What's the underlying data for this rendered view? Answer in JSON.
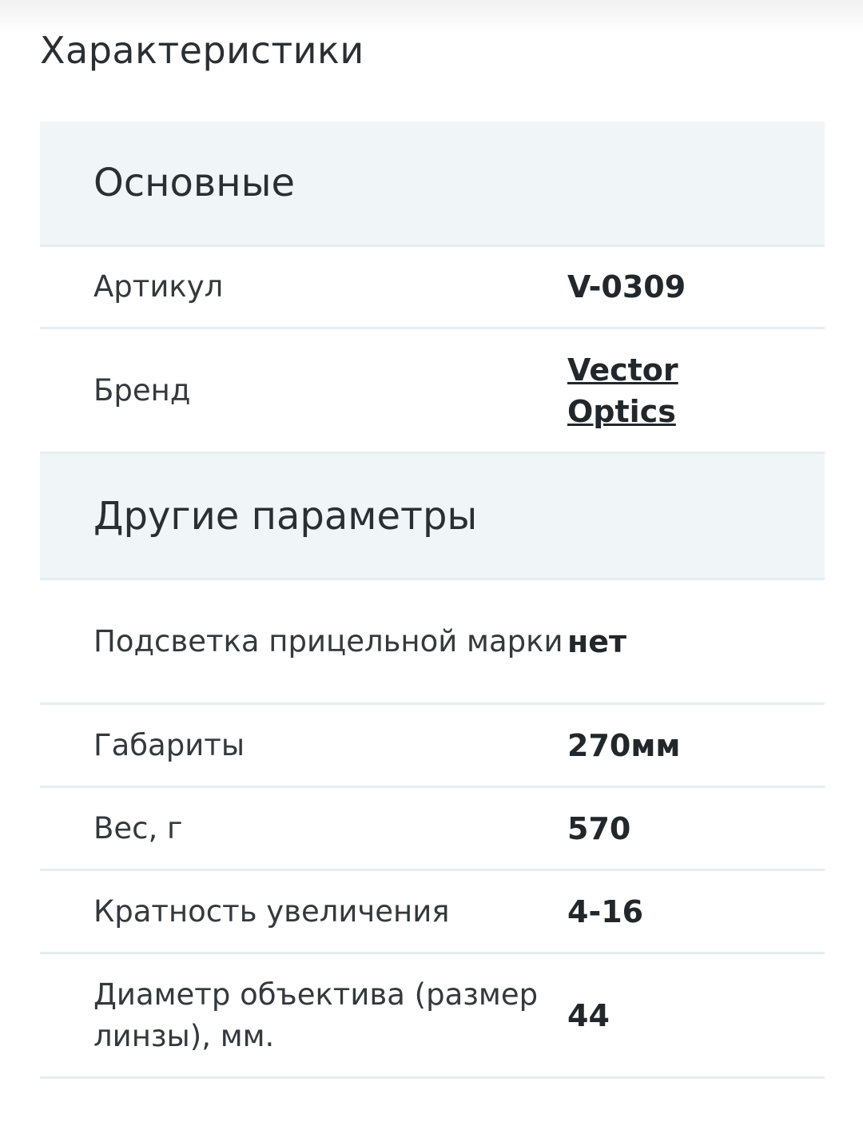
{
  "title": "Характеристики",
  "sections": [
    {
      "title": "Основные",
      "rows": [
        {
          "label": "Артикул",
          "value": "V-0309"
        },
        {
          "label": "Бренд",
          "value": "Vector Optics"
        }
      ]
    },
    {
      "title": "Другие параметры",
      "rows": [
        {
          "label": "Подсветка прицельной марки",
          "value": "нет"
        },
        {
          "label": "Габариты",
          "value": "270мм"
        },
        {
          "label": "Вес, г",
          "value": "570"
        },
        {
          "label": "Кратность увеличения",
          "value": "4-16"
        },
        {
          "label": "Диаметр объектива (размер линзы), мм.",
          "value": "44"
        }
      ]
    }
  ]
}
